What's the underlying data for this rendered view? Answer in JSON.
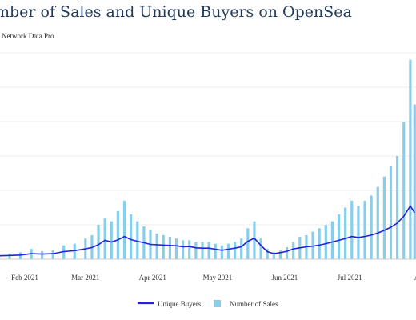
{
  "title": "mber of Sales and Unique Buyers on OpenSea",
  "subtitle": "Network Data Pro",
  "chart_data": {
    "type": "bar",
    "categories": [
      "2021-01-15",
      "2021-01-20",
      "2021-01-25",
      "2021-01-30",
      "2021-02-04",
      "2021-02-09",
      "2021-02-14",
      "2021-02-19",
      "2021-02-24",
      "2021-03-01",
      "2021-03-04",
      "2021-03-07",
      "2021-03-10",
      "2021-03-13",
      "2021-03-16",
      "2021-03-19",
      "2021-03-22",
      "2021-03-25",
      "2021-03-28",
      "2021-03-31",
      "2021-04-03",
      "2021-04-06",
      "2021-04-09",
      "2021-04-12",
      "2021-04-15",
      "2021-04-18",
      "2021-04-21",
      "2021-04-24",
      "2021-04-27",
      "2021-04-30",
      "2021-05-03",
      "2021-05-06",
      "2021-05-09",
      "2021-05-12",
      "2021-05-15",
      "2021-05-18",
      "2021-05-21",
      "2021-05-24",
      "2021-05-27",
      "2021-05-30",
      "2021-06-02",
      "2021-06-05",
      "2021-06-08",
      "2021-06-11",
      "2021-06-14",
      "2021-06-17",
      "2021-06-20",
      "2021-06-23",
      "2021-06-26",
      "2021-06-29",
      "2021-07-02",
      "2021-07-05",
      "2021-07-08",
      "2021-07-11",
      "2021-07-14",
      "2021-07-17",
      "2021-07-20",
      "2021-07-23",
      "2021-07-26",
      "2021-07-29",
      "2021-07-31"
    ],
    "series": [
      {
        "name": "Number of Sales",
        "type": "bar",
        "color": "#87ceeb",
        "values": [
          1.2,
          1.5,
          1.7,
          2,
          3,
          2.3,
          2.6,
          4,
          4.5,
          6,
          7,
          10,
          12,
          11,
          14,
          17,
          13,
          11,
          9.5,
          8.5,
          7.5,
          7,
          6.5,
          6,
          5.5,
          5.5,
          5,
          5,
          5,
          4.5,
          4,
          4.5,
          5,
          6,
          9,
          11,
          6,
          3,
          2,
          2.5,
          3.5,
          5,
          6.5,
          7,
          8,
          9,
          10,
          11,
          13,
          15,
          17,
          15.5,
          17,
          18.5,
          21,
          24,
          27,
          30,
          40,
          58,
          45
        ]
      },
      {
        "name": "Unique Buyers",
        "type": "line",
        "color": "#2222dd",
        "values": [
          0.9,
          1,
          1.1,
          1.2,
          1.6,
          1.5,
          1.6,
          2.2,
          2.5,
          3,
          3.4,
          4.2,
          5.5,
          5,
          5.6,
          6.6,
          5.7,
          5.2,
          4.8,
          4.3,
          4.2,
          4.1,
          4,
          3.9,
          3.6,
          3.7,
          3.3,
          3.2,
          3.2,
          2.9,
          2.6,
          2.9,
          3.2,
          3.6,
          5.2,
          6.1,
          4,
          2.2,
          1.6,
          1.9,
          2.3,
          3,
          3.3,
          3.6,
          3.8,
          4.1,
          4.5,
          5,
          5.5,
          6,
          6.6,
          6.3,
          6.6,
          7,
          7.6,
          8.4,
          9.3,
          10.5,
          12.5,
          15.5,
          13.5
        ]
      }
    ],
    "x_tick_labels": [
      "Feb 2021",
      "Mar 2021",
      "Apr 2021",
      "May 2021",
      "Jun 2021",
      "Jul 2021",
      "A"
    ],
    "ylim": [
      0,
      60
    ],
    "grid": true,
    "legend_position": "bottom"
  },
  "legend": {
    "line_label": "Unique Buyers",
    "bar_label": "Number of Sales"
  },
  "colors": {
    "bars": "#87ceeb",
    "line": "#2222dd",
    "grid": "#ececec",
    "title": "#1f3a5f"
  }
}
